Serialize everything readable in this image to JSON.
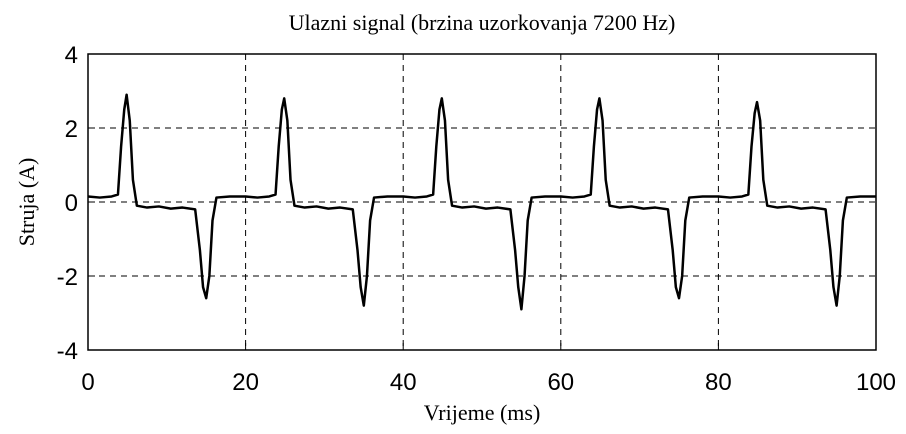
{
  "chart_data": {
    "type": "line",
    "title": "Ulazni signal (brzina uzorkovanja 7200 Hz)",
    "xlabel": "Vrijeme (ms)",
    "ylabel": "Struja (A)",
    "xlim": [
      0,
      100
    ],
    "ylim": [
      -4,
      4
    ],
    "xticks": [
      0,
      20,
      40,
      60,
      80,
      100
    ],
    "yticks": [
      -4,
      -2,
      0,
      2,
      4
    ],
    "grid": true,
    "series": [
      {
        "color": "#000000",
        "x": [
          0,
          1.5,
          3,
          3.8,
          4.2,
          4.6,
          4.9,
          5.3,
          5.7,
          6.2,
          7.5,
          9,
          10.5,
          12,
          13.6,
          14.2,
          14.6,
          15,
          15.4,
          15.8,
          16.3,
          18,
          20,
          21.5,
          23,
          23.8,
          24.2,
          24.6,
          24.9,
          25.3,
          25.7,
          26.2,
          27.5,
          29,
          30.5,
          32,
          33.6,
          34.2,
          34.6,
          35,
          35.4,
          35.8,
          36.3,
          38,
          40,
          41.5,
          43,
          43.8,
          44.2,
          44.6,
          44.9,
          45.3,
          45.7,
          46.2,
          47.5,
          49,
          50.5,
          52,
          53.6,
          54.2,
          54.6,
          55,
          55.4,
          55.8,
          56.3,
          58,
          60,
          61.5,
          63,
          63.8,
          64.2,
          64.6,
          64.9,
          65.3,
          65.7,
          66.2,
          67.5,
          69,
          70.5,
          72,
          73.6,
          74.2,
          74.6,
          75,
          75.4,
          75.8,
          76.3,
          78,
          80,
          81.5,
          83,
          83.8,
          84.2,
          84.6,
          84.9,
          85.3,
          85.7,
          86.2,
          87.5,
          89,
          90.5,
          92,
          93.6,
          94.2,
          94.6,
          95,
          95.4,
          95.8,
          96.3,
          98,
          100
        ],
        "values": [
          0.15,
          0.12,
          0.15,
          0.2,
          1.5,
          2.5,
          2.9,
          2.2,
          0.6,
          -0.1,
          -0.15,
          -0.12,
          -0.18,
          -0.15,
          -0.2,
          -1.3,
          -2.3,
          -2.6,
          -2.0,
          -0.5,
          0.12,
          0.15,
          0.15,
          0.12,
          0.15,
          0.2,
          1.5,
          2.5,
          2.8,
          2.2,
          0.6,
          -0.1,
          -0.15,
          -0.12,
          -0.18,
          -0.15,
          -0.2,
          -1.3,
          -2.3,
          -2.8,
          -2.0,
          -0.5,
          0.12,
          0.15,
          0.15,
          0.12,
          0.15,
          0.2,
          1.5,
          2.5,
          2.8,
          2.2,
          0.6,
          -0.1,
          -0.15,
          -0.12,
          -0.18,
          -0.15,
          -0.2,
          -1.3,
          -2.3,
          -2.9,
          -2.0,
          -0.5,
          0.12,
          0.15,
          0.15,
          0.12,
          0.15,
          0.2,
          1.5,
          2.5,
          2.8,
          2.2,
          0.6,
          -0.1,
          -0.15,
          -0.12,
          -0.18,
          -0.15,
          -0.2,
          -1.3,
          -2.3,
          -2.6,
          -2.0,
          -0.5,
          0.12,
          0.15,
          0.15,
          0.12,
          0.15,
          0.2,
          1.5,
          2.4,
          2.7,
          2.2,
          0.6,
          -0.1,
          -0.15,
          -0.12,
          -0.18,
          -0.15,
          -0.2,
          -1.3,
          -2.3,
          -2.8,
          -2.0,
          -0.5,
          0.12,
          0.15,
          0.15
        ]
      }
    ]
  }
}
